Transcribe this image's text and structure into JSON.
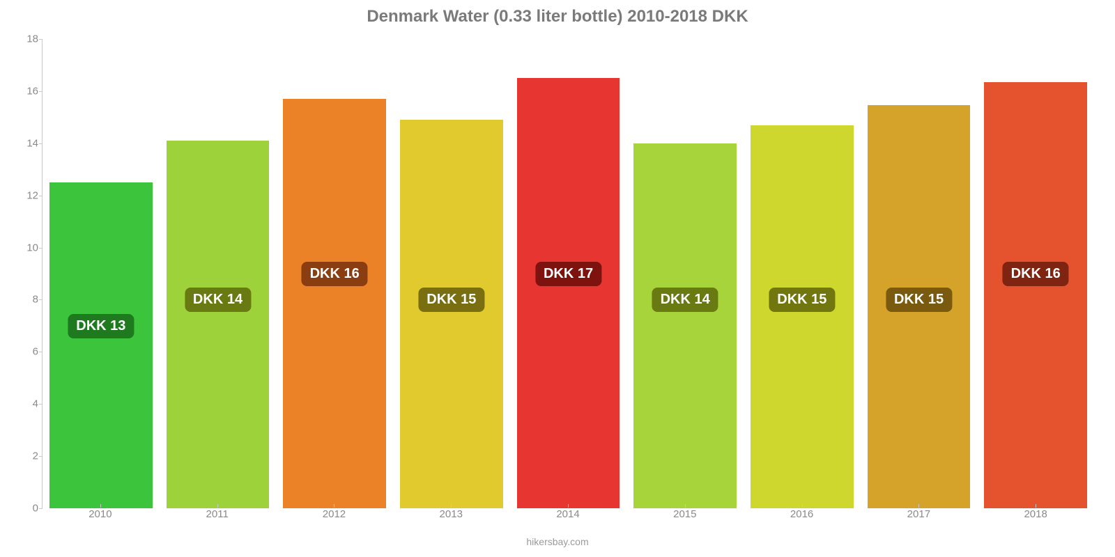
{
  "chart": {
    "type": "bar",
    "title": "Denmark Water (0.33 liter bottle) 2010-2018 DKK",
    "title_fontsize": 24,
    "title_color": "#7a7a7a",
    "background_color": "#ffffff",
    "axis_color": "#c8c8c8",
    "tick_label_color": "#8a8a8a",
    "tick_fontsize": 15,
    "ylim": [
      0,
      18
    ],
    "yticks": [
      0,
      2,
      4,
      6,
      8,
      10,
      12,
      14,
      16,
      18
    ],
    "bar_width_ratio": 0.88,
    "attribution": "hikersbay.com",
    "attribution_color": "#9a9a9a",
    "pill_fontsize": 20,
    "pill_text_color": "#ffffff",
    "pill_radius": 8,
    "categories": [
      "2010",
      "2011",
      "2012",
      "2013",
      "2014",
      "2015",
      "2016",
      "2017",
      "2018"
    ],
    "values": [
      12.5,
      14.1,
      15.7,
      14.9,
      16.5,
      14.0,
      14.7,
      15.45,
      16.35
    ],
    "bar_colors": [
      "#3cc43c",
      "#9ed23a",
      "#ec8227",
      "#e0ca2e",
      "#e73531",
      "#a6d43a",
      "#cdd72e",
      "#d6a32a",
      "#e4532d"
    ],
    "pills": {
      "labels": [
        "DKK 13",
        "DKK 14",
        "DKK 16",
        "DKK 15",
        "DKK 17",
        "DKK 14",
        "DKK 15",
        "DKK 15",
        "DKK 16"
      ],
      "bg_colors": [
        "#1f7a1f",
        "#6a7a12",
        "#8a3d10",
        "#7a6f10",
        "#7d120f",
        "#6a7a12",
        "#72760f",
        "#7a5a0f",
        "#7e2410"
      ],
      "y_positions": [
        7.0,
        8.0,
        9.0,
        8.0,
        9.0,
        8.0,
        8.0,
        8.0,
        9.0
      ]
    }
  }
}
